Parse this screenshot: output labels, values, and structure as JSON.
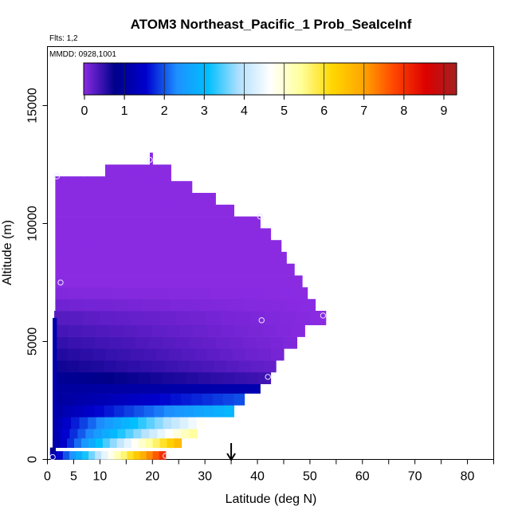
{
  "chart_data": {
    "type": "heatmap",
    "title": "ATOM3 Northeast_Pacific_1 Prob_SeaIceInf",
    "flights_label": "Flts: 1,2",
    "dates_label": "MMDD: 0928,1001",
    "xlabel": "Latitude (deg N)",
    "ylabel": "Altitude (m)",
    "xlim": [
      0,
      85
    ],
    "ylim": [
      0,
      17500
    ],
    "x_ticks": [
      0,
      5,
      10,
      20,
      30,
      40,
      50,
      60,
      70,
      80
    ],
    "x_minor_ticks": [
      15,
      25,
      35,
      45,
      55,
      65,
      75,
      85
    ],
    "y_ticks": [
      0,
      5000,
      10000,
      15000
    ],
    "colorbar": {
      "range": [
        0,
        9.3
      ],
      "ticks": [
        0,
        1,
        2,
        3,
        4,
        5,
        6,
        7,
        8,
        9
      ],
      "colors": [
        "#8a2be2",
        "#00008b",
        "#0000cd",
        "#1e90ff",
        "#00bfff",
        "#b0e0ff",
        "#ffffff",
        "#ffff99",
        "#ffd700",
        "#ffa500",
        "#ff4500",
        "#dd0000",
        "#a52020"
      ]
    },
    "current_latitude_marker": 35,
    "profile_points": [
      {
        "lat": 1.0,
        "alt": 100
      },
      {
        "lat": 22.5,
        "alt": 150
      },
      {
        "lat": 2.5,
        "alt": 7500
      },
      {
        "lat": 1.8,
        "alt": 12000
      },
      {
        "lat": 19.5,
        "alt": 12700
      },
      {
        "lat": 40.5,
        "alt": 10300
      },
      {
        "lat": 40.8,
        "alt": 5900
      },
      {
        "lat": 42.0,
        "alt": 3500
      },
      {
        "lat": 52.5,
        "alt": 6100
      }
    ],
    "band_extents_note": "",
    "bands": [
      {
        "y0": 0,
        "y1": 350,
        "x0": 0.5,
        "x1": 22.5,
        "v0": 1.0,
        "v1": 8.2
      },
      {
        "y0": 350,
        "y1": 500,
        "x0": 0.5,
        "x1": 1.5,
        "v0": 0.8,
        "v1": 0.8
      },
      {
        "y0": 500,
        "y1": 900,
        "x0": 1.0,
        "x1": 25.5,
        "v0": 1.0,
        "v1": 6.8
      },
      {
        "y0": 900,
        "y1": 1300,
        "x0": 1.2,
        "x1": 28.5,
        "v0": 1.2,
        "v1": 5.5
      },
      {
        "y0": 1300,
        "y1": 1800,
        "x0": 1.3,
        "x1": 30.0,
        "v0": 1.2,
        "v1": 4.8
      },
      {
        "y0": 1800,
        "y1": 2300,
        "x0": 1.3,
        "x1": 35.5,
        "v0": 1.1,
        "v1": 3.0
      },
      {
        "y0": 2300,
        "y1": 2800,
        "x0": 1.3,
        "x1": 37.5,
        "v0": 1.0,
        "v1": 2.0
      },
      {
        "y0": 2800,
        "y1": 3200,
        "x0": 1.3,
        "x1": 40.5,
        "v0": 1.0,
        "v1": 1.2
      },
      {
        "y0": 3200,
        "y1": 3700,
        "x0": 1.3,
        "x1": 42.5,
        "v0": 0.9,
        "v1": 0.4
      },
      {
        "y0": 3700,
        "y1": 4200,
        "x0": 1.3,
        "x1": 43.5,
        "v0": 0.7,
        "v1": 0.2
      },
      {
        "y0": 4200,
        "y1": 4700,
        "x0": 1.3,
        "x1": 45.0,
        "v0": 0.6,
        "v1": 0.1
      },
      {
        "y0": 4700,
        "y1": 5200,
        "x0": 1.3,
        "x1": 47.5,
        "v0": 0.5,
        "v1": 0.05
      },
      {
        "y0": 5200,
        "y1": 5700,
        "x0": 1.3,
        "x1": 49.0,
        "v0": 0.4,
        "v1": 0.02
      },
      {
        "y0": 5700,
        "y1": 6300,
        "x0": 1.3,
        "x1": 53.0,
        "v0": 0.3,
        "v1": 0.0
      },
      {
        "y0": 6300,
        "y1": 6800,
        "x0": 1.5,
        "x1": 51.0,
        "v0": 0.15,
        "v1": 0.0
      },
      {
        "y0": 6800,
        "y1": 7300,
        "x0": 1.5,
        "x1": 49.5,
        "v0": 0.05,
        "v1": 0.0
      },
      {
        "y0": 7300,
        "y1": 7800,
        "x0": 1.5,
        "x1": 48.5,
        "v0": 0.0,
        "v1": 0.0
      },
      {
        "y0": 7800,
        "y1": 8300,
        "x0": 1.5,
        "x1": 47.0,
        "v0": 0.0,
        "v1": 0.0
      },
      {
        "y0": 8300,
        "y1": 8800,
        "x0": 1.5,
        "x1": 45.5,
        "v0": 0.0,
        "v1": 0.0
      },
      {
        "y0": 8800,
        "y1": 9300,
        "x0": 1.5,
        "x1": 44.5,
        "v0": 0.0,
        "v1": 0.0
      },
      {
        "y0": 9300,
        "y1": 9800,
        "x0": 1.5,
        "x1": 42.5,
        "v0": 0.0,
        "v1": 0.0
      },
      {
        "y0": 9800,
        "y1": 10300,
        "x0": 1.5,
        "x1": 40.5,
        "v0": 0.0,
        "v1": 0.0
      },
      {
        "y0": 10300,
        "y1": 10800,
        "x0": 1.5,
        "x1": 35.5,
        "v0": 0.0,
        "v1": 0.0
      },
      {
        "y0": 10800,
        "y1": 11300,
        "x0": 1.5,
        "x1": 32.0,
        "v0": 0.0,
        "v1": 0.0
      },
      {
        "y0": 11300,
        "y1": 11800,
        "x0": 1.5,
        "x1": 27.5,
        "v0": 0.0,
        "v1": 0.0
      },
      {
        "y0": 11800,
        "y1": 12000,
        "x0": 1.5,
        "x1": 23.5,
        "v0": 0.0,
        "v1": 0.0
      },
      {
        "y0": 12000,
        "y1": 12500,
        "x0": 11.0,
        "x1": 23.5,
        "v0": 0.0,
        "v1": 0.0
      },
      {
        "y0": 12500,
        "y1": 13000,
        "x0": 19.5,
        "x1": 20.0,
        "v0": 0.0,
        "v1": 0.0
      }
    ],
    "blue_columns": [
      {
        "x0": 1.0,
        "x1": 1.8,
        "y0": 500,
        "y1": 6000,
        "v": 1.2
      }
    ]
  }
}
